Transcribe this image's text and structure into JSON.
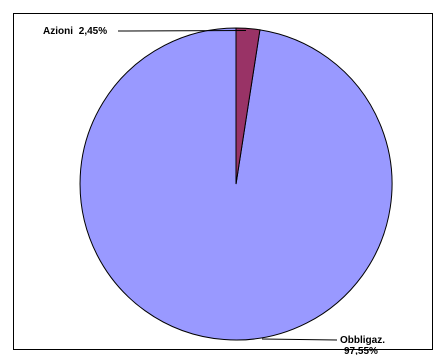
{
  "chart_data": {
    "type": "pie",
    "title": "",
    "start_angle_deg": -90,
    "direction": "counterclockwise",
    "slices": [
      {
        "label": "Obbligaz.",
        "value_text": "97,55%",
        "value": 97.55,
        "color": "#9999ff",
        "label_position": "bottom-right"
      },
      {
        "label": "Azioni",
        "value_text": "2,45%",
        "value": 2.45,
        "color": "#993366",
        "label_position": "top-left"
      }
    ],
    "border_color": "#000000",
    "legend": "none"
  }
}
